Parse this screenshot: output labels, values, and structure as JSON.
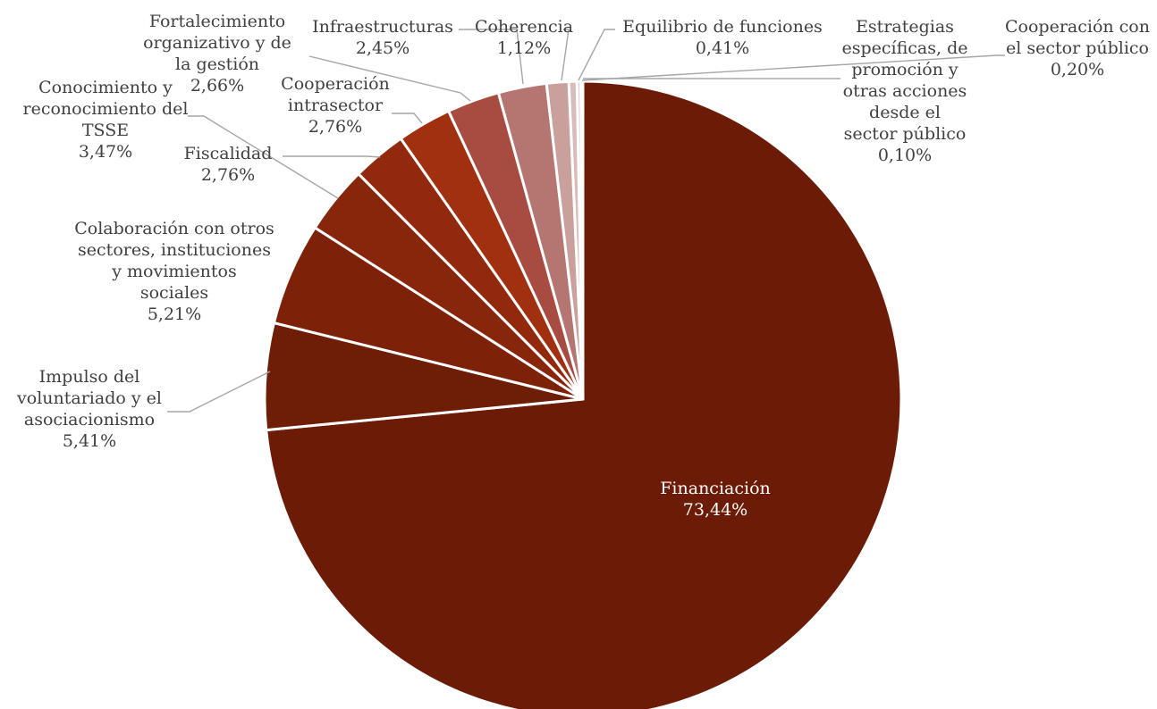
{
  "chart_data": {
    "type": "pie",
    "title": "",
    "start_angle_deg": 0,
    "direction": "clockwise",
    "slices": [
      {
        "label": [
          "Financiación"
        ],
        "value_text": "73,44%",
        "value": 73.44,
        "color": "#6b1b06",
        "label_inside": true
      },
      {
        "label": [
          "Impulso del",
          "voluntariado y el",
          "asociacionismo"
        ],
        "value_text": "5,41%",
        "value": 5.41,
        "color": "#6e1e07"
      },
      {
        "label": [
          "Colaboración con otros",
          "sectores, instituciones",
          "y movimientos",
          "sociales"
        ],
        "value_text": "5,21%",
        "value": 5.21,
        "color": "#7d2209"
      },
      {
        "label": [
          "Conocimiento y",
          "reconocimiento del",
          "TSSE"
        ],
        "value_text": "3,47%",
        "value": 3.47,
        "color": "#88260b"
      },
      {
        "label": [
          "Fiscalidad"
        ],
        "value_text": "2,76%",
        "value": 2.76,
        "color": "#92290d"
      },
      {
        "label": [
          "Cooperación",
          "intrasector"
        ],
        "value_text": "2,76%",
        "value": 2.76,
        "color": "#a0300f"
      },
      {
        "label": [
          "Fortalecimiento",
          "organizativo y de",
          "la gestión"
        ],
        "value_text": "2,66%",
        "value": 2.66,
        "color": "#a84c41"
      },
      {
        "label": [
          "Infraestructuras"
        ],
        "value_text": "2,45%",
        "value": 2.45,
        "color": "#b57570"
      },
      {
        "label": [
          "Coherencia"
        ],
        "value_text": "1,12%",
        "value": 1.12,
        "color": "#c9a09c"
      },
      {
        "label": [
          "Equilibrio de funciones"
        ],
        "value_text": "0,41%",
        "value": 0.41,
        "color": "#d8bcb9"
      },
      {
        "label": [
          "Cooperación con",
          "el sector público"
        ],
        "value_text": "0,20%",
        "value": 0.2,
        "color": "#e3cfcc"
      },
      {
        "label": [
          "Estrategias",
          "específicas, de",
          "promoción  y",
          "otras acciones",
          "desde el",
          "sector público"
        ],
        "value_text": "0,10%",
        "value": 0.1,
        "color": "#ecdedc"
      }
    ]
  }
}
